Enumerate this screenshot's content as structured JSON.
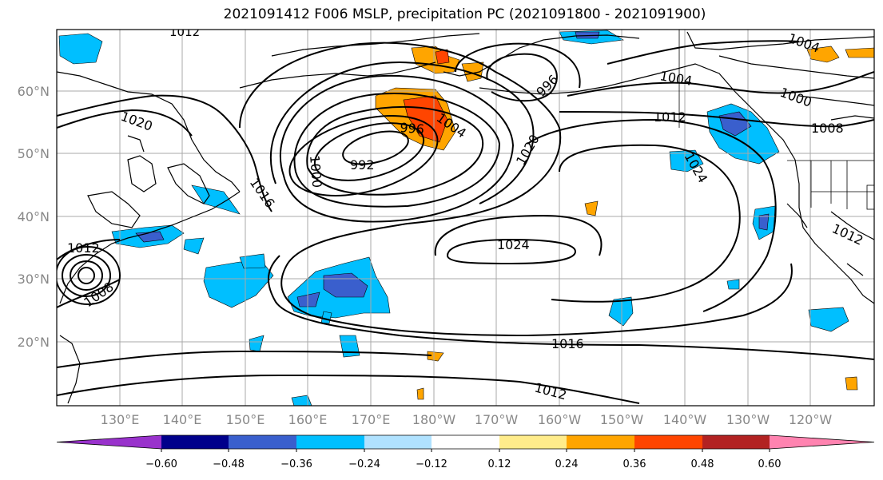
{
  "title": "2021091412 F006 MSLP, precipitation PC (2021091800 - 2021091900)",
  "lon_labels": [
    "130°E",
    "140°E",
    "150°E",
    "160°E",
    "170°E",
    "180°W",
    "170°W",
    "160°W",
    "150°W",
    "140°W",
    "130°W",
    "120°W"
  ],
  "lat_labels": [
    "20°N",
    "30°N",
    "40°N",
    "50°N",
    "60°N"
  ],
  "colorbar": {
    "tick_labels": [
      "−0.60",
      "−0.48",
      "−0.36",
      "−0.24",
      "−0.12",
      "0.12",
      "0.24",
      "0.36",
      "0.48",
      "0.60"
    ],
    "colors": [
      "#9932cc",
      "#00008b",
      "#3a5fcd",
      "#00bfff",
      "#b0e2ff",
      "#ffffff",
      "#ffec8b",
      "#ffa500",
      "#ff4500",
      "#b22222",
      "#ff83b0"
    ]
  },
  "isobar_labels": [
    "1012",
    "1020",
    "1016",
    "1012",
    "1008",
    "996",
    "1004",
    "992",
    "1000",
    "1020",
    "1024",
    "1024",
    "1016",
    "1012",
    "1004",
    "1008",
    "1012",
    "1004",
    "1000",
    "996",
    "1012"
  ]
}
